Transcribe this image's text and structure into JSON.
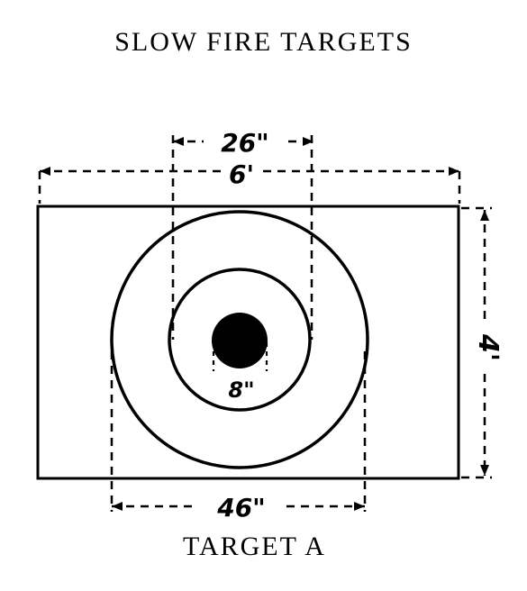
{
  "title": "SLOW FIRE TARGETS",
  "caption": "TARGET A",
  "dimensions": {
    "inner_ring": "26\"",
    "target_width": "6'",
    "target_height": "4'",
    "bull": "8\"",
    "outer_ring": "46\""
  },
  "colors": {
    "ink": "#000000",
    "paper": "#ffffff"
  }
}
